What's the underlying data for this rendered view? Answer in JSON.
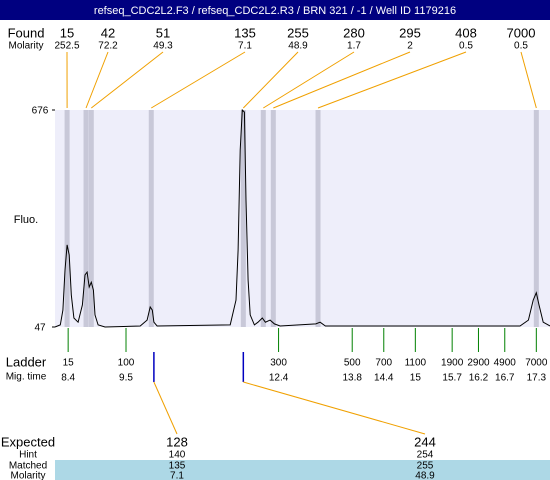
{
  "title": "refseq_CDC2L2.F3 / refseq_CDC2L2.R3 / BRN 321 / -1 / Well ID 1179216",
  "found": {
    "label": "Found",
    "molarity_label": "Molarity",
    "peaks": [
      {
        "size": 15,
        "molarity": 252.5,
        "time": 8.38
      },
      {
        "size": 42,
        "molarity": 72.2,
        "time": 8.74
      },
      {
        "size": 51,
        "molarity": 49.3,
        "time": 8.84
      },
      {
        "size": 135,
        "molarity": 7.1,
        "time": 9.98
      },
      {
        "size": 255,
        "molarity": 48.9,
        "time": 11.73
      },
      {
        "size": 280,
        "molarity": 1.7,
        "time": 12.11
      },
      {
        "size": 295,
        "molarity": 2,
        "time": 12.3
      },
      {
        "size": 408,
        "molarity": 0.5,
        "time": 13.15
      },
      {
        "size": 7000,
        "molarity": 0.5,
        "time": 17.3
      }
    ]
  },
  "chart_data": {
    "type": "line",
    "y_label": "Fluo.",
    "ylim": [
      47,
      676
    ],
    "yticks": [
      47,
      676
    ],
    "xlim": [
      8.15,
      17.56
    ],
    "color": "#000000",
    "band_color": "#c8c8d8",
    "x": [
      8.15,
      8.25,
      8.3,
      8.34,
      8.38,
      8.42,
      8.46,
      8.51,
      8.59,
      8.67,
      8.72,
      8.76,
      8.8,
      8.84,
      8.88,
      8.91,
      8.97,
      9.1,
      9.77,
      9.9,
      9.96,
      10.0,
      10.03,
      10.09,
      11.48,
      11.59,
      11.63,
      11.67,
      11.71,
      11.75,
      11.78,
      11.82,
      11.86,
      11.94,
      12.01,
      12.09,
      12.15,
      12.24,
      12.32,
      12.43,
      13.11,
      13.19,
      13.29,
      16.99,
      17.15,
      17.24,
      17.3,
      17.35,
      17.43,
      17.56
    ],
    "values": [
      47,
      53,
      96,
      212,
      285,
      256,
      140,
      73,
      61,
      111,
      198,
      206,
      163,
      177,
      154,
      82,
      53,
      47,
      50,
      67,
      105,
      96,
      61,
      50,
      53,
      125,
      270,
      560,
      676,
      670,
      415,
      183,
      82,
      53,
      61,
      73,
      61,
      67,
      56,
      50,
      56,
      61,
      50,
      50,
      67,
      125,
      146,
      111,
      61,
      50
    ]
  },
  "ladder": {
    "label": "Ladder",
    "time_label": "Mig. time",
    "sizes": [
      15,
      100,
      300,
      500,
      700,
      1100,
      1900,
      2900,
      4900,
      7000
    ],
    "times": [
      8.4,
      9.5,
      12.4,
      13.8,
      14.4,
      15,
      15.7,
      16.2,
      16.7,
      17.3
    ]
  },
  "expected": {
    "label": "Expected",
    "hint_label": "Hint",
    "matched_label": "Matched",
    "molarity_label": "Molarity",
    "items": [
      {
        "size": 128,
        "hint": 140,
        "matched": 135,
        "molarity": 7.1,
        "time": 10.03
      },
      {
        "size": 244,
        "hint": 254,
        "matched": 255,
        "molarity": 48.9,
        "time": 11.73
      }
    ]
  }
}
